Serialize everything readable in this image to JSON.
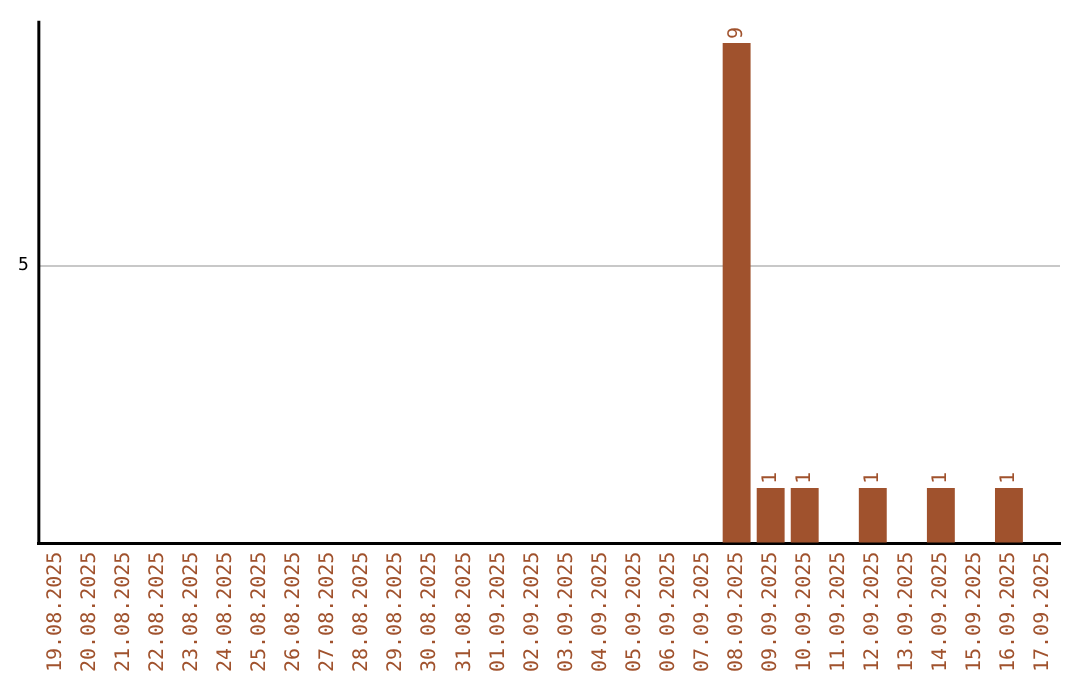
{
  "chart_data": {
    "type": "bar",
    "categories": [
      "19.08.2025",
      "20.08.2025",
      "21.08.2025",
      "22.08.2025",
      "23.08.2025",
      "24.08.2025",
      "25.08.2025",
      "26.08.2025",
      "27.08.2025",
      "28.08.2025",
      "29.08.2025",
      "30.08.2025",
      "31.08.2025",
      "01.09.2025",
      "02.09.2025",
      "03.09.2025",
      "04.09.2025",
      "05.09.2025",
      "06.09.2025",
      "07.09.2025",
      "08.09.2025",
      "09.09.2025",
      "10.09.2025",
      "11.09.2025",
      "12.09.2025",
      "13.09.2025",
      "14.09.2025",
      "15.09.2025",
      "16.09.2025",
      "17.09.2025"
    ],
    "values": [
      null,
      null,
      null,
      null,
      null,
      null,
      null,
      null,
      null,
      null,
      null,
      null,
      null,
      null,
      null,
      null,
      null,
      null,
      null,
      null,
      9,
      1,
      1,
      null,
      1,
      null,
      1,
      null,
      1,
      null
    ],
    "data_labels": true,
    "color": "#a0522d",
    "ylim": [
      0,
      9.4
    ],
    "yticks": [
      {
        "value": 0,
        "label": null
      },
      5
    ],
    "grid": "y",
    "legend": false
  }
}
